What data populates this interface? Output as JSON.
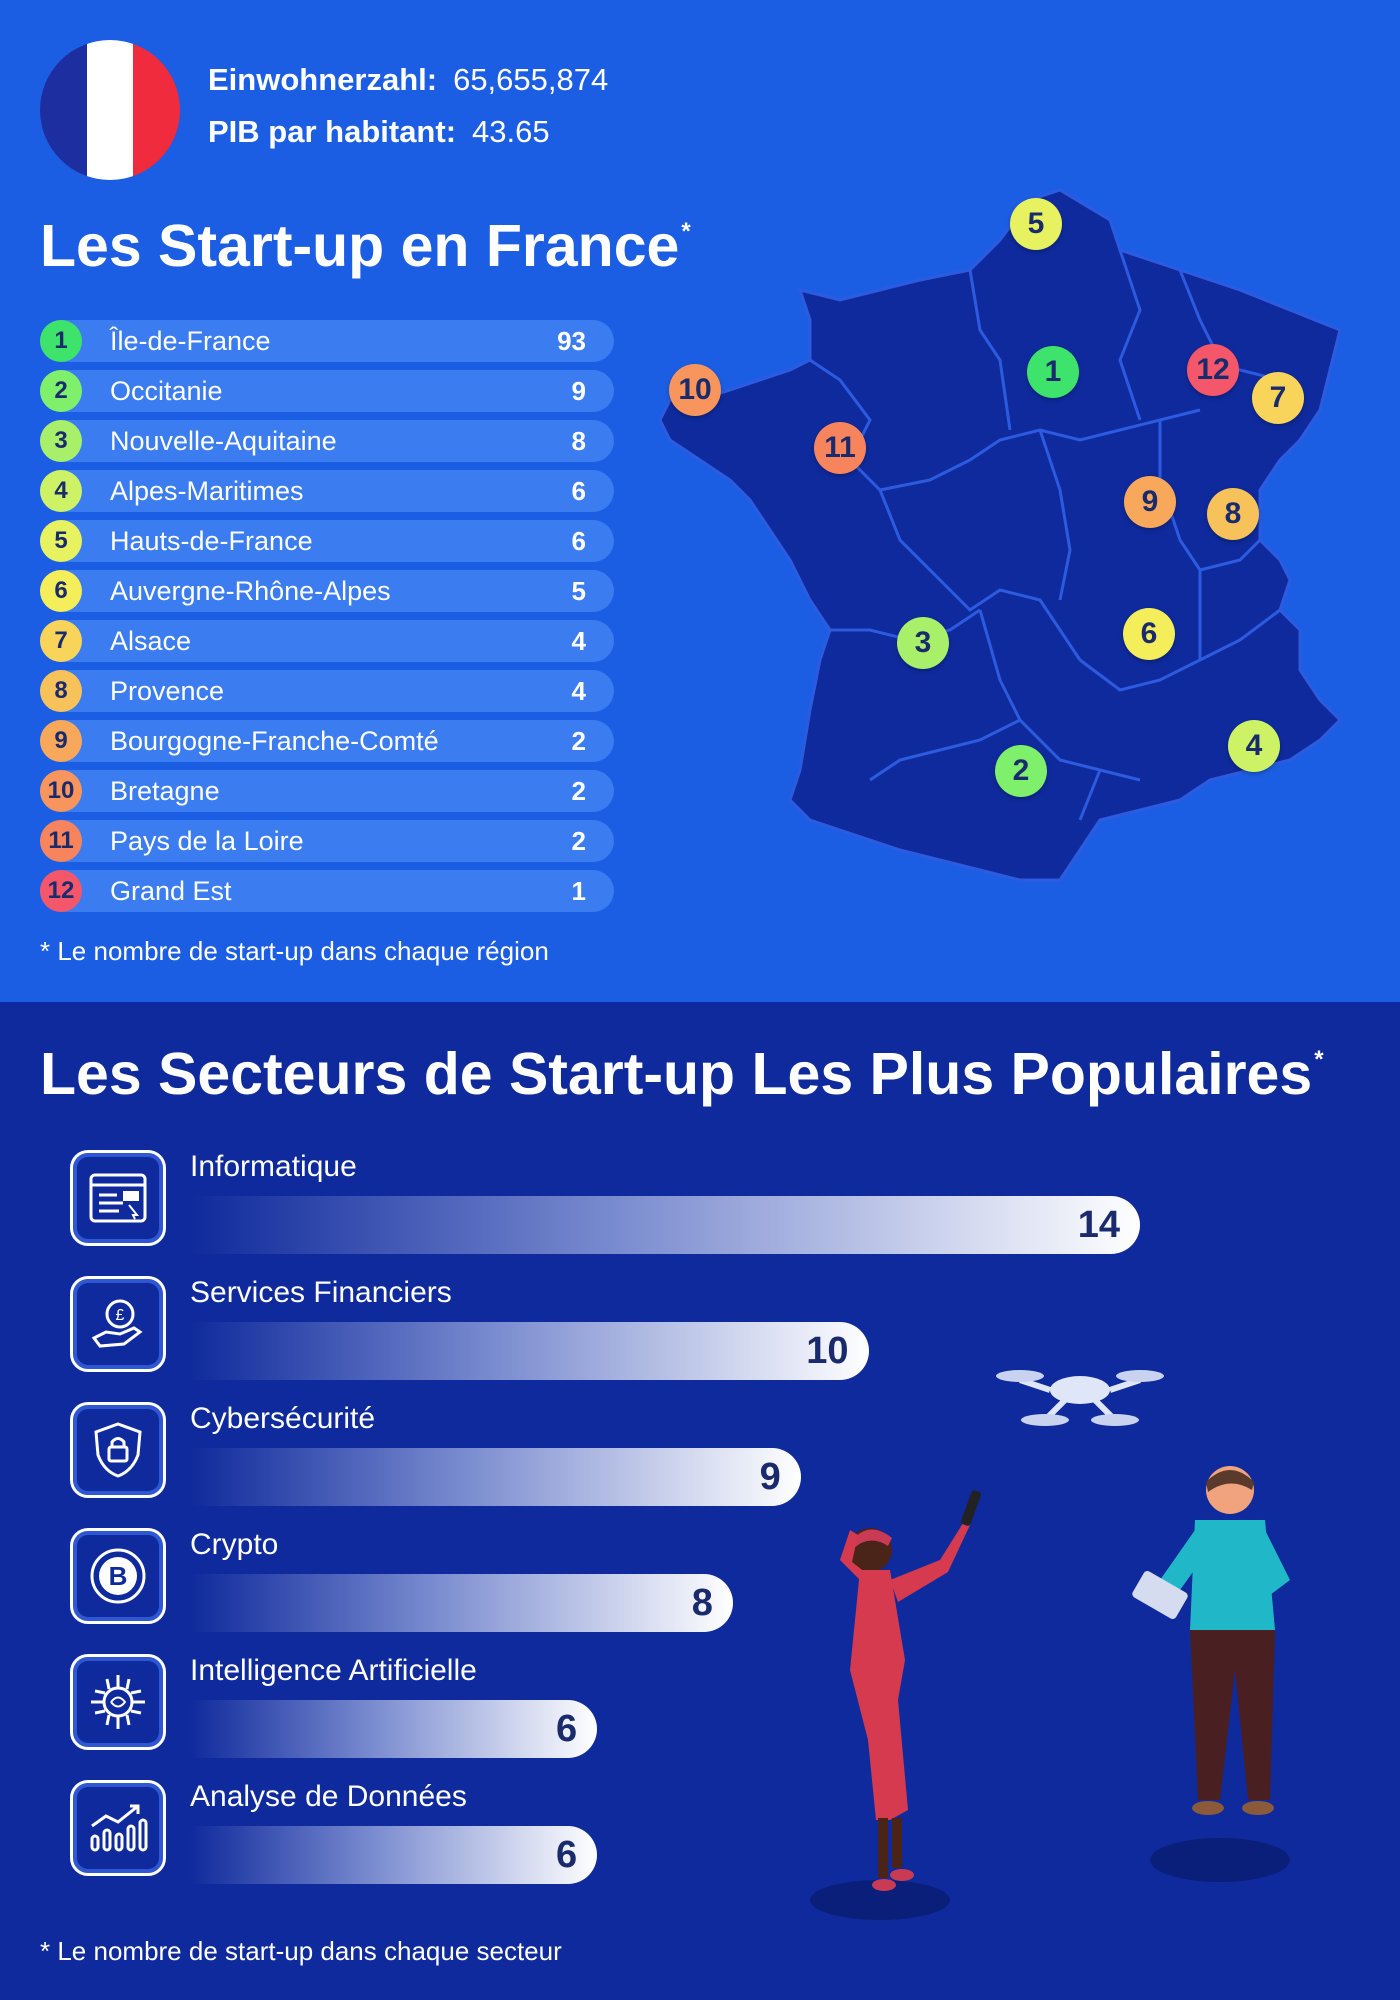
{
  "header": {
    "population_label": "Einwohnerzahl:",
    "population_value": "65,655,874",
    "gdp_label": "PIB par habitant:",
    "gdp_value": "43.65",
    "flag_colors": [
      "#1d2fa0",
      "#ffffff",
      "#ef2b3d"
    ]
  },
  "regions": {
    "title": "Les Start-up en France",
    "title_mark": "*",
    "note": "* Le nombre de start-up dans chaque région",
    "items": [
      {
        "rank": "1",
        "name": "Île-de-France",
        "value": "93",
        "color": "#3de36a"
      },
      {
        "rank": "2",
        "name": "Occitanie",
        "value": "9",
        "color": "#7ef06c"
      },
      {
        "rank": "3",
        "name": "Nouvelle-Aquitaine",
        "value": "8",
        "color": "#a8ef6a"
      },
      {
        "rank": "4",
        "name": "Alpes-Maritimes",
        "value": "6",
        "color": "#cdf265"
      },
      {
        "rank": "5",
        "name": "Hauts-de-France",
        "value": "6",
        "color": "#e6f25f"
      },
      {
        "rank": "6",
        "name": "Auvergne-Rhône-Alpes",
        "value": "5",
        "color": "#f4ee5a"
      },
      {
        "rank": "7",
        "name": "Alsace",
        "value": "4",
        "color": "#f8d45a"
      },
      {
        "rank": "8",
        "name": "Provence",
        "value": "4",
        "color": "#f8c25a"
      },
      {
        "rank": "9",
        "name": "Bourgogne-Franche-Comté",
        "value": "2",
        "color": "#f8a85a"
      },
      {
        "rank": "10",
        "name": "Bretagne",
        "value": "2",
        "color": "#f7955c"
      },
      {
        "rank": "11",
        "name": "Pays de la Loire",
        "value": "2",
        "color": "#f7845c"
      },
      {
        "rank": "12",
        "name": "Grand Est",
        "value": "1",
        "color": "#f4566a"
      }
    ]
  },
  "sectors": {
    "title": "Les Secteurs de Start-up Les Plus Populaires",
    "title_mark": "*",
    "note": "* Le nombre de start-up dans chaque secteur",
    "items": [
      {
        "name": "Informatique",
        "value": "14",
        "icon": "computer-window-icon"
      },
      {
        "name": "Services Financiers",
        "value": "10",
        "icon": "hand-coin-icon"
      },
      {
        "name": "Cybersécurité",
        "value": "9",
        "icon": "shield-lock-icon"
      },
      {
        "name": "Crypto",
        "value": "8",
        "icon": "bitcoin-icon"
      },
      {
        "name": "Intelligence Artificielle",
        "value": "6",
        "icon": "ai-brain-chip-icon"
      },
      {
        "name": "Analyse de Données",
        "value": "6",
        "icon": "growth-chart-icon"
      }
    ]
  },
  "chart_data": {
    "type": "bar",
    "title": "Les Secteurs de Start-up Les Plus Populaires",
    "categories": [
      "Informatique",
      "Services Financiers",
      "Cybersécurité",
      "Crypto",
      "Intelligence Artificielle",
      "Analyse de Données"
    ],
    "values": [
      14,
      10,
      9,
      8,
      6,
      6
    ],
    "orientation": "horizontal"
  }
}
